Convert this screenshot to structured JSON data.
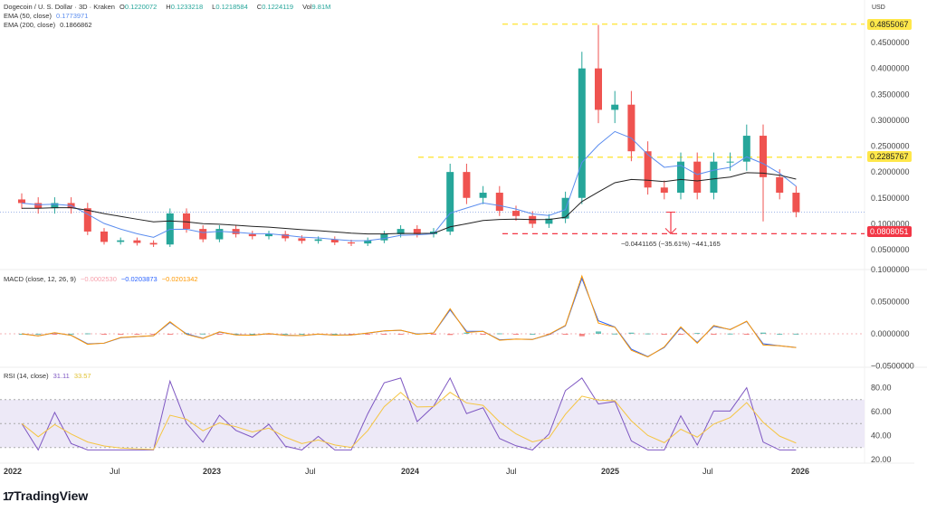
{
  "header": {
    "symbol": "Dogecoin / U. S. Dollar · 3D · Kraken",
    "o_label": "O",
    "o": "0.1220072",
    "h_label": "H",
    "h": "0.1233218",
    "l_label": "L",
    "l": "0.1218584",
    "c_label": "C",
    "c": "0.1224119",
    "vol_label": "Vol",
    "vol": "9.81M",
    "ema50_label": "EMA (50, close)",
    "ema50": "0.1773971",
    "ema200_label": "EMA (200, close)",
    "ema200": "0.1866862"
  },
  "currency": "USD",
  "price_tags": {
    "high": "0.4855067",
    "mid": "0.2285767",
    "low": "0.0808051"
  },
  "measure": "−0.0441165 (−35.61%) −441,165",
  "macd_legend": {
    "label": "MACD (close, 12, 26, 9)",
    "hist": "−0.0002530",
    "macd": "−0.0203873",
    "signal": "−0.0201342"
  },
  "rsi_legend": {
    "label": "RSI (14, close)",
    "rsi": "31.11",
    "ma": "33.57"
  },
  "brand": "TradingView",
  "colors": {
    "up": "#26a69a",
    "down": "#ef5350",
    "ema50": "#5b8def",
    "ema200": "#222222",
    "yellow": "#ffe74a",
    "red": "#f23645",
    "rsi": "#7e57c2",
    "rsi_ma": "#f5c542",
    "macd": "#2962ff",
    "signal": "#ff9800"
  },
  "chart_data": [
    {
      "type": "candlestick",
      "title": "Dogecoin / U. S. Dollar · 3D · Kraken",
      "ylabel": "USD",
      "ylim": [
        0.03,
        0.5
      ],
      "x": [
        "2022-01",
        "2022-02",
        "2022-03",
        "2022-04",
        "2022-05",
        "2022-06",
        "2022-07",
        "2022-08",
        "2022-09",
        "2022-10",
        "2022-11",
        "2022-12",
        "2023-01",
        "2023-02",
        "2023-03",
        "2023-04",
        "2023-05",
        "2023-06",
        "2023-07",
        "2023-08",
        "2023-09",
        "2023-10",
        "2023-11",
        "2023-12",
        "2024-01",
        "2024-02",
        "2024-03",
        "2024-04",
        "2024-05",
        "2024-06",
        "2024-07",
        "2024-08",
        "2024-09",
        "2024-10",
        "2024-11",
        "2024-12",
        "2025-01",
        "2025-02",
        "2025-03",
        "2025-04",
        "2025-05",
        "2025-06",
        "2025-07",
        "2025-08",
        "2025-09",
        "2025-10",
        "2025-11",
        "2025-12"
      ],
      "close": [
        0.14,
        0.13,
        0.14,
        0.13,
        0.085,
        0.065,
        0.068,
        0.063,
        0.06,
        0.12,
        0.09,
        0.07,
        0.09,
        0.08,
        0.076,
        0.08,
        0.072,
        0.067,
        0.07,
        0.064,
        0.062,
        0.068,
        0.08,
        0.09,
        0.08,
        0.085,
        0.2,
        0.15,
        0.16,
        0.125,
        0.115,
        0.1,
        0.11,
        0.15,
        0.4,
        0.32,
        0.33,
        0.24,
        0.17,
        0.16,
        0.22,
        0.16,
        0.22,
        0.22,
        0.27,
        0.19,
        0.16,
        0.1224
      ],
      "y_ticks": [
        "0.4500000",
        "0.4000000",
        "0.3500000",
        "0.3000000",
        "0.2500000",
        "0.2000000",
        "0.1500000",
        "0.1000000",
        "0.0500000"
      ],
      "x_ticks": [
        "2022",
        "Jul",
        "2023",
        "Jul",
        "2024",
        "Jul",
        "2025",
        "Jul",
        "2026"
      ],
      "hlines": [
        0.4855067,
        0.2285767,
        0.0808051
      ]
    },
    {
      "type": "line",
      "title": "MACD (close, 12, 26, 9)",
      "ylim": [
        -0.05,
        0.1
      ],
      "y_ticks": [
        "0.1000000",
        "0.0500000",
        "0.0000000",
        "−0.0500000"
      ]
    },
    {
      "type": "line",
      "title": "RSI (14, close)",
      "ylim": [
        20,
        85
      ],
      "y_ticks": [
        "80.00",
        "60.00",
        "40.00",
        "20.00"
      ],
      "bands": [
        30,
        50,
        70
      ]
    }
  ]
}
